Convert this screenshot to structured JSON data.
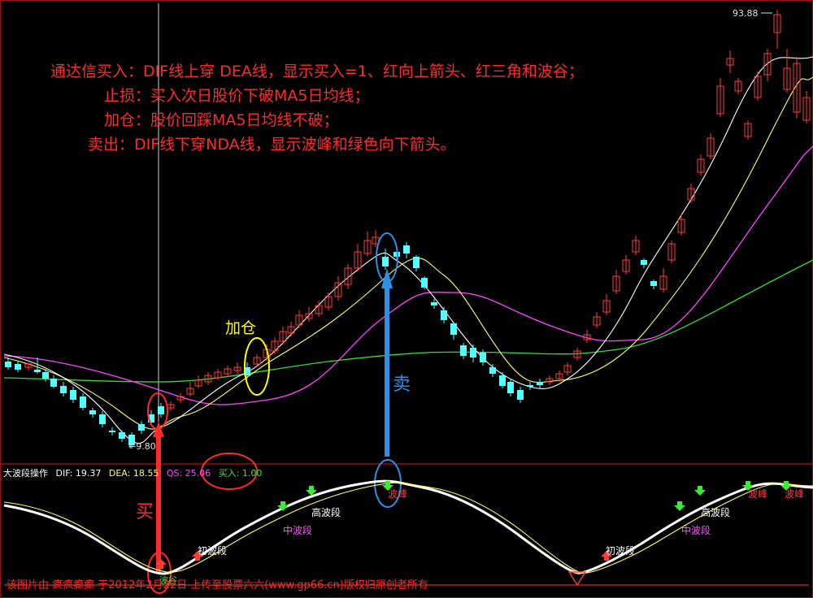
{
  "colors": {
    "background": "#000000",
    "up_candle": "#ff3b3b",
    "down_candle": "#54ffff",
    "ma_white": "#ffffff",
    "ma_yellow": "#ffff66",
    "ma_magenta": "#ff44ff",
    "ma_green": "#33dd33",
    "annotation_red": "#ff2a2a",
    "annotation_blue": "#2d8fe6",
    "annotation_yellow": "#ffff00"
  },
  "rules": {
    "line1": "通达信买入：DIF线上穿  DEA线，显示买入=1、红向上箭头、红三角和波谷；",
    "line2": "止损：买入次日股价下破MA5日均线；",
    "line3": "加仓：股价回踩MA5日均线不破；",
    "line4": "卖出：DIF线下穿NDA线，显示波峰和绿色向下箭头。"
  },
  "price_labels": {
    "high": "93.88",
    "low": "←9.80"
  },
  "annotations": {
    "add": "加仓",
    "sell": "卖",
    "buy": "买"
  },
  "indicator": {
    "name": "大波段操作",
    "dif": "DIF: 19.37",
    "dea": "DEA: 18.55",
    "qs": "QS: 25.06",
    "buy": "买入: 1.00"
  },
  "wave_labels": {
    "initial_1": "初波段",
    "mid_1": "中波段",
    "high_1": "高波段",
    "peak_1": "波峰",
    "initial_2": "初波段",
    "mid_2": "中波段",
    "high_2": "高波段",
    "peak_2": "波峰",
    "peak_3": "波峰",
    "valley": "波谷"
  },
  "footer": "该图片由 疯疯癫癫 于2012年2月22日 上传至股票六六(www.gp66.cn)版权归原创者所有"
}
